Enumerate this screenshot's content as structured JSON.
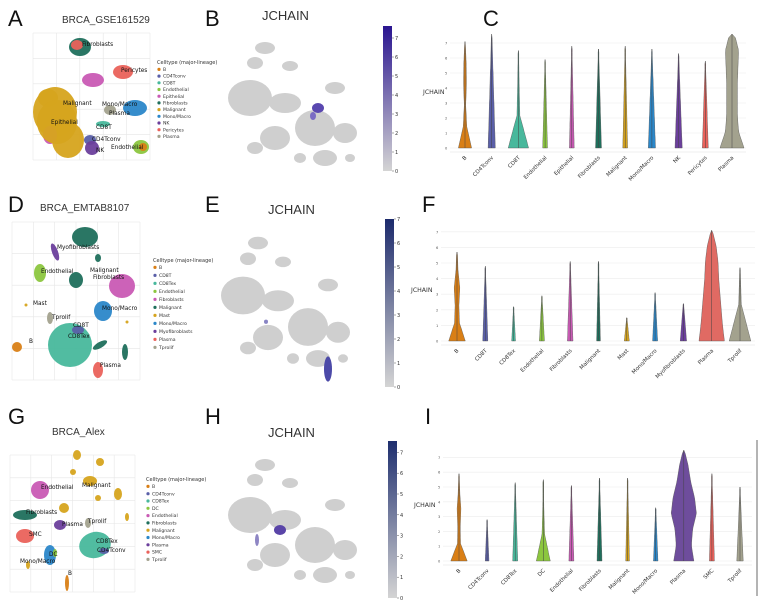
{
  "panel_labels": [
    "A",
    "B",
    "C",
    "D",
    "E",
    "F",
    "G",
    "H",
    "I"
  ],
  "chart_data": [
    {
      "panel": "A",
      "type": "scatter",
      "title": "BRCA_GSE161529",
      "legend_title": "Celltype (major-lineage)",
      "legend_placement": "right",
      "grid": true,
      "legend": [
        {
          "name": "B",
          "color": "#d97f16"
        },
        {
          "name": "CD4Tconv",
          "color": "#5a5fa8"
        },
        {
          "name": "CD8T",
          "color": "#48b89c"
        },
        {
          "name": "Endothelial",
          "color": "#8cc63f"
        },
        {
          "name": "Epithelial",
          "color": "#c95ab4"
        },
        {
          "name": "Fibroblasts",
          "color": "#1f6f5c"
        },
        {
          "name": "Malignant",
          "color": "#d6a41e"
        },
        {
          "name": "Mono/Macro",
          "color": "#2b87c9"
        },
        {
          "name": "NK",
          "color": "#6b3f9c"
        },
        {
          "name": "Pericytes",
          "color": "#ea625b"
        },
        {
          "name": "Plasma",
          "color": "#a3a28e"
        }
      ],
      "cluster_labels": [
        "Fibroblasts",
        "Pericytes",
        "Malignant",
        "Mono/Macro",
        "Plasma",
        "Epithelial",
        "CD8T",
        "CD4Tconv",
        "NK",
        "Endothelial"
      ]
    },
    {
      "panel": "B",
      "type": "scatter",
      "title": "JCHAIN",
      "colorbar": {
        "min": 0,
        "max": 7.6,
        "ticks": [
          0,
          1,
          2,
          3,
          4,
          5,
          6,
          7
        ],
        "low_color": "#d4d4d4",
        "high_color": "#2a1590"
      }
    },
    {
      "panel": "C",
      "type": "violin",
      "ylabel": "JCHAIN",
      "ylim": [
        0,
        7.6
      ],
      "yticks": [
        0,
        1,
        2,
        3,
        4,
        5,
        6,
        7
      ],
      "grid": true,
      "categories": [
        "B",
        "CD4Tconv",
        "CD8T",
        "Endothelial",
        "Epithelial",
        "Fibroblasts",
        "Malignant",
        "Mono/Macro",
        "NK",
        "Pericytes",
        "Plasma"
      ],
      "max_values": [
        7.1,
        7.6,
        6.5,
        5.9,
        6.8,
        6.6,
        6.8,
        6.6,
        6.3,
        5.8,
        7.6
      ],
      "relative_density": [
        [
          0.55,
          0.15,
          0.06,
          0.12,
          0.1,
          0.02
        ],
        [
          0.3,
          0.02
        ],
        [
          0.85,
          0.12,
          0.06,
          0.02
        ],
        [
          0.2,
          0.01
        ],
        [
          0.2,
          0.01
        ],
        [
          0.25,
          0.01
        ],
        [
          0.2,
          0.01
        ],
        [
          0.3,
          0.01
        ],
        [
          0.3,
          0.01
        ],
        [
          0.25,
          0.01
        ],
        [
          1.0,
          0.55,
          0.45,
          0.45,
          0.45,
          0.5,
          0.55,
          0.2
        ]
      ],
      "colors": [
        "#d97f16",
        "#5a5fa8",
        "#48b89c",
        "#8cc63f",
        "#c95ab4",
        "#1f6f5c",
        "#d6a41e",
        "#2b87c9",
        "#6b3f9c",
        "#ea625b",
        "#a3a28e"
      ]
    },
    {
      "panel": "D",
      "type": "scatter",
      "title": "BRCA_EMTAB8107",
      "legend_title": "Celltype (major-lineage)",
      "legend_placement": "right",
      "grid": true,
      "legend": [
        {
          "name": "B",
          "color": "#d97f16"
        },
        {
          "name": "CD8T",
          "color": "#5a5fa8"
        },
        {
          "name": "CD8Tex",
          "color": "#48b89c"
        },
        {
          "name": "Endothelial",
          "color": "#8cc63f"
        },
        {
          "name": "Fibroblasts",
          "color": "#c95ab4"
        },
        {
          "name": "Malignant",
          "color": "#1f6f5c"
        },
        {
          "name": "Mast",
          "color": "#d6a41e"
        },
        {
          "name": "Mono/Macro",
          "color": "#2b87c9"
        },
        {
          "name": "Myofibroblasts",
          "color": "#6b3f9c"
        },
        {
          "name": "Plasma",
          "color": "#ea625b"
        },
        {
          "name": "Tprolif",
          "color": "#a3a28e"
        }
      ],
      "cluster_labels": [
        "Myofibroblasts",
        "Endothelial",
        "Malignant",
        "Fibroblasts",
        "Mast",
        "Mono/Macro",
        "Tprolif",
        "CD8T",
        "CD8Tex",
        "B",
        "Plasma"
      ]
    },
    {
      "panel": "E",
      "type": "scatter",
      "title": "JCHAIN",
      "colorbar": {
        "min": 0,
        "max": 7,
        "ticks": [
          0,
          1,
          2,
          3,
          4,
          5,
          6,
          7
        ],
        "low_color": "#d4d4d4",
        "high_color": "#1c2a6c"
      }
    },
    {
      "panel": "F",
      "type": "violin",
      "ylabel": "JCHAIN",
      "ylim": [
        0,
        7.3
      ],
      "yticks": [
        0,
        1,
        2,
        3,
        4,
        5,
        6,
        7
      ],
      "grid": true,
      "categories": [
        "B",
        "CD8T",
        "CD8Tex",
        "Endothelial",
        "Fibroblasts",
        "Malignant",
        "Mast",
        "Mono/Macro",
        "Myofibroblasts",
        "Plasma",
        "Tprolif"
      ],
      "max_values": [
        5.7,
        4.8,
        2.2,
        2.9,
        5.1,
        5.1,
        1.5,
        3.1,
        2.4,
        7.1,
        4.7
      ],
      "relative_density": [
        [
          0.65,
          0.2,
          0.15,
          0.22,
          0.08,
          0.03
        ],
        [
          0.2,
          0.01
        ],
        [
          0.15,
          0.01
        ],
        [
          0.2,
          0.01
        ],
        [
          0.22,
          0.01
        ],
        [
          0.15,
          0.01
        ],
        [
          0.2,
          0.01
        ],
        [
          0.2,
          0.01
        ],
        [
          0.25,
          0.02
        ],
        [
          1.0,
          0.85,
          0.75,
          0.65,
          0.55,
          0.5,
          0.35,
          0.05
        ],
        [
          0.85,
          0.1,
          0.02
        ]
      ],
      "colors": [
        "#d97f16",
        "#5a5fa8",
        "#48b89c",
        "#8cc63f",
        "#c95ab4",
        "#1f6f5c",
        "#d6a41e",
        "#2b87c9",
        "#6b3f9c",
        "#e06a63",
        "#a3a28e"
      ]
    },
    {
      "panel": "G",
      "type": "scatter",
      "title": "BRCA_Alex",
      "legend_title": "Celltype (major-lineage)",
      "legend_placement": "right",
      "grid": true,
      "legend": [
        {
          "name": "B",
          "color": "#d97f16"
        },
        {
          "name": "CD4Tconv",
          "color": "#5a5fa8"
        },
        {
          "name": "CD8Tex",
          "color": "#48b89c"
        },
        {
          "name": "DC",
          "color": "#8cc63f"
        },
        {
          "name": "Endothelial",
          "color": "#c95ab4"
        },
        {
          "name": "Fibroblasts",
          "color": "#1f6f5c"
        },
        {
          "name": "Malignant",
          "color": "#d6a41e"
        },
        {
          "name": "Mono/Macro",
          "color": "#2b87c9"
        },
        {
          "name": "Plasma",
          "color": "#6b3f9c"
        },
        {
          "name": "SMC",
          "color": "#ea625b"
        },
        {
          "name": "Tprolif",
          "color": "#a3a28e"
        }
      ],
      "cluster_labels": [
        "Endothelial",
        "Malignant",
        "Fibroblasts",
        "Plasma",
        "Tprolif",
        "SMC",
        "CD8Tex",
        "CD4Tconv",
        "DC",
        "Mono/Macro",
        "B"
      ]
    },
    {
      "panel": "H",
      "type": "scatter",
      "title": "JCHAIN",
      "colorbar": {
        "min": 0,
        "max": 7.5,
        "ticks": [
          0,
          1,
          2,
          3,
          4,
          5,
          6,
          7
        ],
        "low_color": "#d4d4d4",
        "high_color": "#1e2e6e"
      }
    },
    {
      "panel": "I",
      "type": "violin",
      "ylabel": "JCHAIN",
      "ylim": [
        0,
        7.6
      ],
      "yticks": [
        0,
        1,
        2,
        3,
        4,
        5,
        6,
        7
      ],
      "grid": true,
      "categories": [
        "B",
        "CD4Tconv",
        "CD8Tex",
        "DC",
        "Endothelial",
        "Fibroblasts",
        "Malignant",
        "Mono/Macro",
        "Plasma",
        "SMC",
        "Tprolif"
      ],
      "max_values": [
        5.9,
        2.8,
        5.3,
        5.5,
        5.1,
        5.6,
        5.6,
        3.6,
        7.5,
        5.9,
        5.0
      ],
      "relative_density": [
        [
          0.65,
          0.12,
          0.1,
          0.15,
          0.06,
          0.02
        ],
        [
          0.15,
          0.01
        ],
        [
          0.2,
          0.01
        ],
        [
          0.55,
          0.1,
          0.04,
          0.01
        ],
        [
          0.2,
          0.01
        ],
        [
          0.2,
          0.01
        ],
        [
          0.15,
          0.01
        ],
        [
          0.18,
          0.01
        ],
        [
          0.8,
          0.6,
          0.7,
          1.0,
          0.85,
          0.55,
          0.35,
          0.05
        ],
        [
          0.2,
          0.01
        ],
        [
          0.25,
          0.01
        ]
      ],
      "colors": [
        "#d97f16",
        "#5a5fa8",
        "#48b89c",
        "#8cc63f",
        "#c95ab4",
        "#1f6f5c",
        "#d6a41e",
        "#2b87c9",
        "#6e4d9c",
        "#ea625b",
        "#a3a28e"
      ]
    }
  ]
}
